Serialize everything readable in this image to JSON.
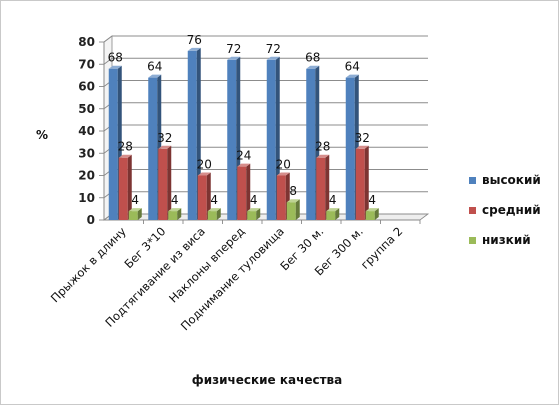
{
  "chart_data": {
    "type": "bar",
    "categories": [
      "Прыжок в длину",
      "Бег 3*10",
      "Подтягивание из виса",
      "Наклоны вперед",
      "Поднимание туловища",
      "Бег 30 м.",
      "Бег 300 м.",
      "группа 2"
    ],
    "series": [
      {
        "name": "высокий",
        "values": [
          68,
          64,
          76,
          72,
          72,
          68,
          64,
          null
        ],
        "color": "#4f81bd"
      },
      {
        "name": "средний",
        "values": [
          28,
          32,
          20,
          24,
          20,
          28,
          32,
          null
        ],
        "color": "#c0504d"
      },
      {
        "name": "низкий",
        "values": [
          4,
          4,
          4,
          4,
          8,
          4,
          4,
          null
        ],
        "color": "#9bbb59"
      }
    ],
    "title": "",
    "xlabel": "физические качества",
    "ylabel": "%",
    "ylim": [
      0,
      80
    ],
    "yticks": [
      0,
      10,
      20,
      30,
      40,
      50,
      60,
      70,
      80
    ],
    "grid": true,
    "style": "3d",
    "legend_position": "right"
  }
}
